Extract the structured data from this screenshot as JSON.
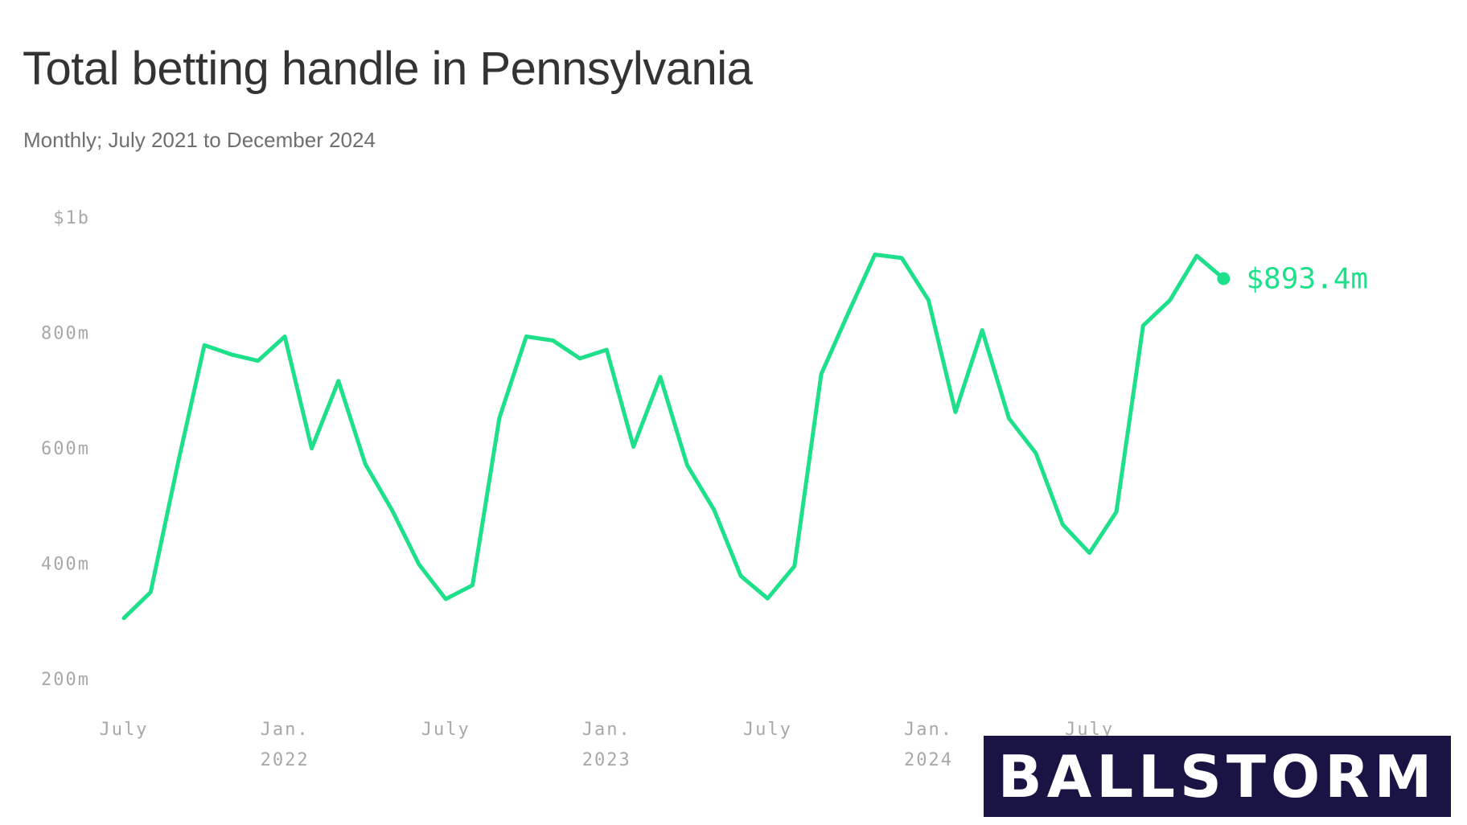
{
  "chart_data": {
    "type": "line",
    "title": "Total betting handle in Pennsylvania",
    "subtitle": "Monthly; July 2021 to December 2024",
    "x": [
      "2021-07",
      "2021-08",
      "2021-09",
      "2021-10",
      "2021-11",
      "2021-12",
      "2022-01",
      "2022-02",
      "2022-03",
      "2022-04",
      "2022-05",
      "2022-06",
      "2022-07",
      "2022-08",
      "2022-09",
      "2022-10",
      "2022-11",
      "2022-12",
      "2023-01",
      "2023-02",
      "2023-03",
      "2023-04",
      "2023-05",
      "2023-06",
      "2023-07",
      "2023-08",
      "2023-09",
      "2023-10",
      "2023-11",
      "2023-12",
      "2024-01",
      "2024-02",
      "2024-03",
      "2024-04",
      "2024-05",
      "2024-06",
      "2024-07",
      "2024-08",
      "2024-09",
      "2024-10",
      "2024-11",
      "2024-12"
    ],
    "series": [
      {
        "name": "",
        "color": "#1fe08a",
        "values": [
          305,
          350,
          570,
          778,
          762,
          751,
          793,
          599,
          716,
          572,
          492,
          398,
          338,
          362,
          652,
          793,
          786,
          755,
          770,
          602,
          723,
          570,
          493,
          378,
          339,
          395,
          728,
          833,
          935,
          929,
          856,
          662,
          804,
          651,
          591,
          467,
          418,
          489,
          812,
          856,
          933,
          893.4
        ]
      }
    ],
    "yticks": [
      "200m",
      "400m",
      "600m",
      "800m",
      "$1b"
    ],
    "ytick_values": [
      200,
      400,
      600,
      800,
      1000
    ],
    "ylim": [
      180,
      1020
    ],
    "xticks": [
      {
        "x": "2021-07",
        "line1": "July",
        "line2": ""
      },
      {
        "x": "2022-01",
        "line1": "Jan.",
        "line2": "2022"
      },
      {
        "x": "2022-07",
        "line1": "July",
        "line2": ""
      },
      {
        "x": "2023-01",
        "line1": "Jan.",
        "line2": "2023"
      },
      {
        "x": "2023-07",
        "line1": "July",
        "line2": ""
      },
      {
        "x": "2024-01",
        "line1": "Jan.",
        "line2": "2024"
      },
      {
        "x": "2024-07",
        "line1": "July",
        "line2": ""
      }
    ],
    "end_label": "$893.4m",
    "grid": false,
    "legend": "none"
  },
  "watermark": {
    "text": "BALLSTORM",
    "background": "#1a1444",
    "color": "#ffffff"
  }
}
